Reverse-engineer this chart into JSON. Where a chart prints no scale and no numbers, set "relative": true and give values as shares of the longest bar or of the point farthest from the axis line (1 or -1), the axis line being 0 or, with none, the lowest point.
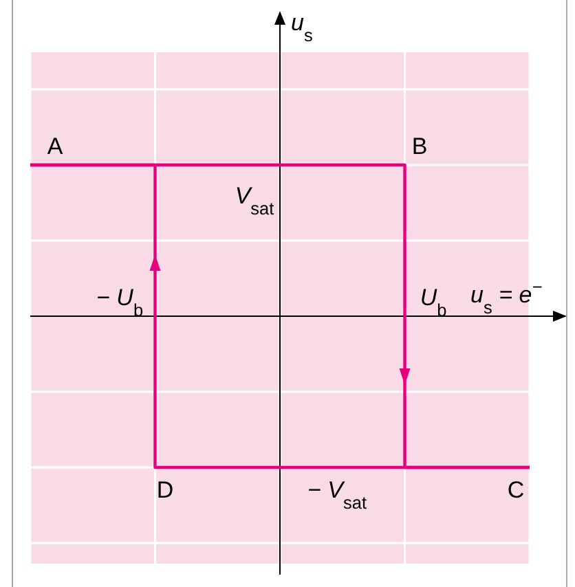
{
  "chart_data": {
    "type": "step",
    "relative": true,
    "categories": [
      null,
      null,
      null,
      null,
      null
    ],
    "xlabel": "u$_{s}$ = e$^{−}$",
    "series": [
      {
        "color": "#e5007d",
        "values": [
          1,
          1,
          1,
          -1,
          -1
        ]
      },
      {
        "color": "#e5007d",
        "values": [
          1,
          -1,
          -1,
          -1,
          -1
        ]
      }
    ],
    "annotations": [
      "A",
      "B",
      "C",
      "D",
      "V$_{sat}$",
      "− V$_{sat}$",
      "− U$_{b}$",
      "U$_{b}$",
      "u$_{s}$"
    ],
    "grid": true
  }
}
